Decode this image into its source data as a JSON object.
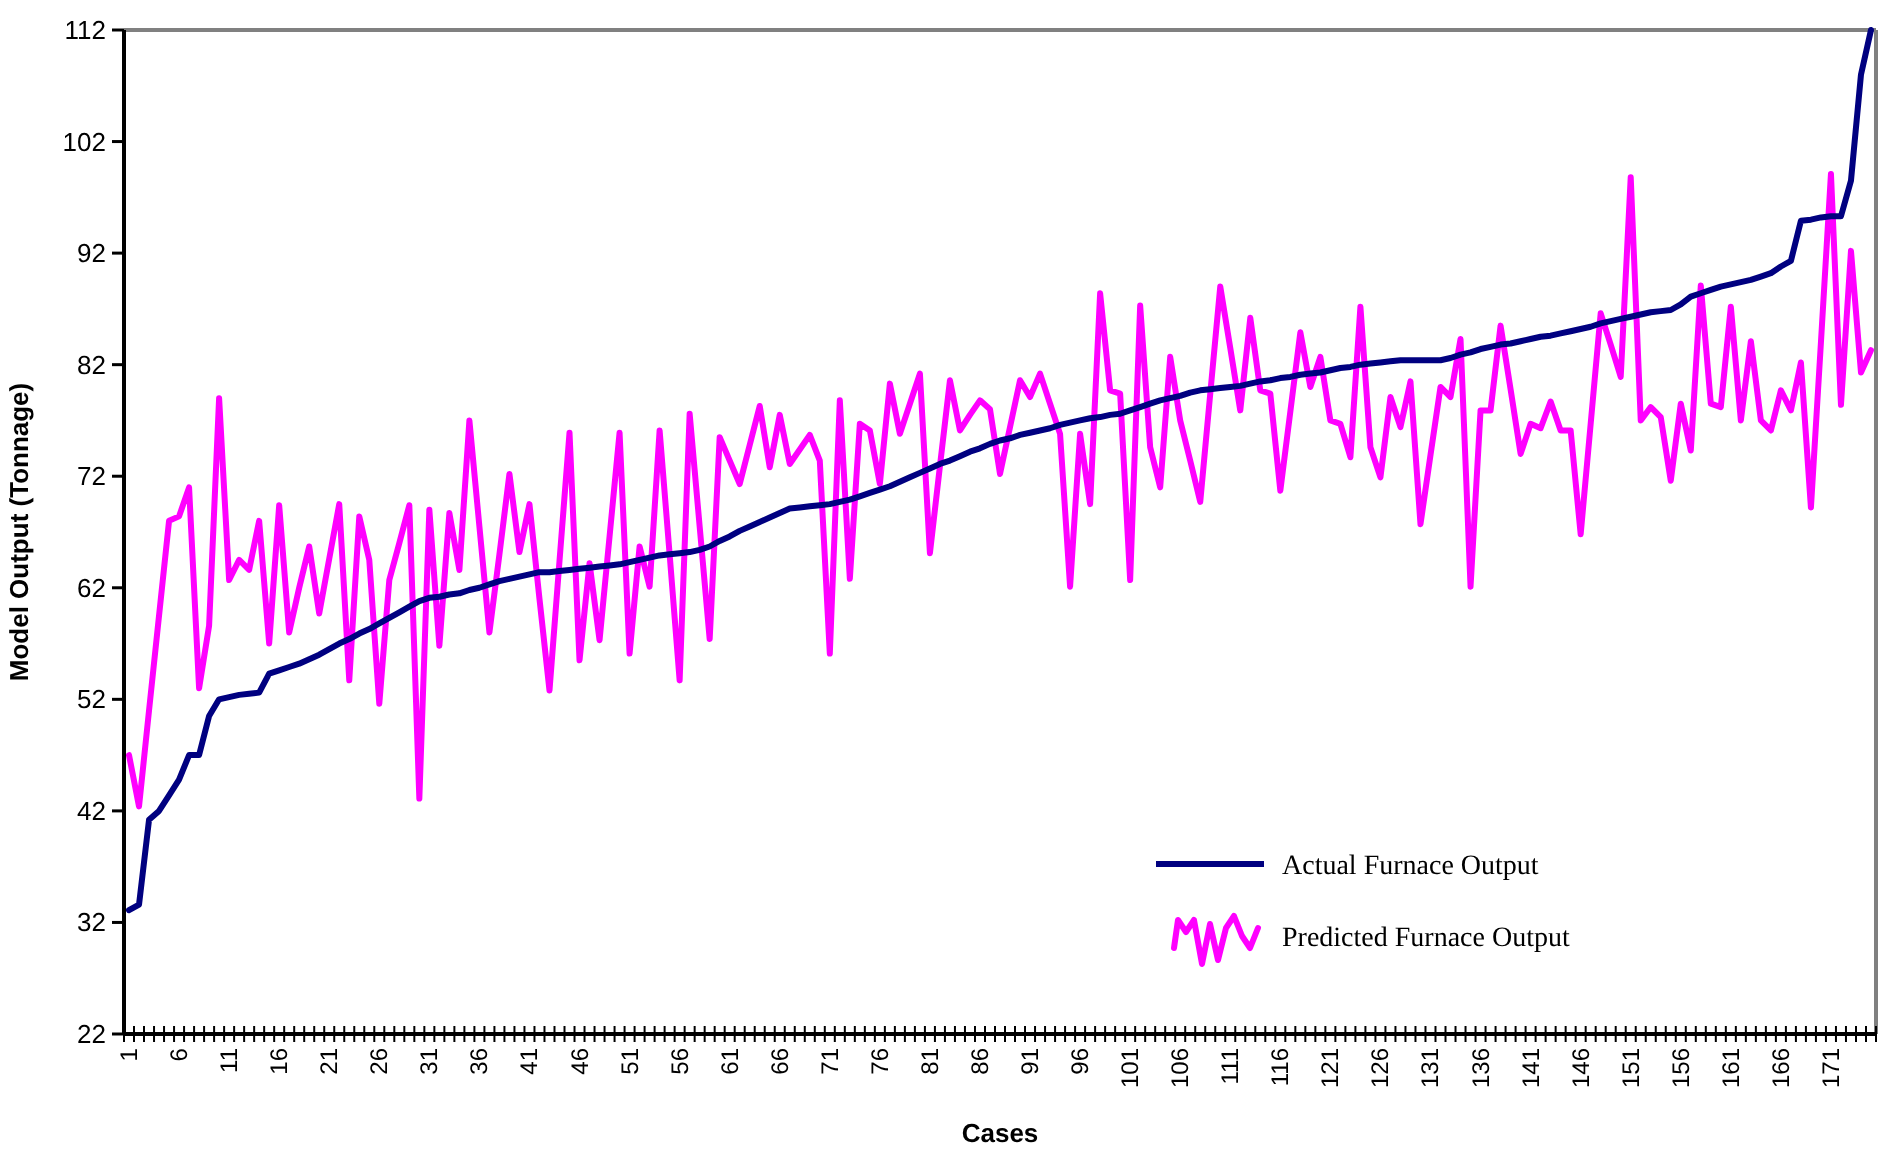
{
  "chart_data": {
    "type": "line",
    "xlabel": "Cases",
    "ylabel": "Model Output (Tonnage)",
    "categories": [
      "1",
      null,
      null,
      null,
      null,
      "6",
      null,
      null,
      null,
      null,
      "11",
      null,
      null,
      null,
      null,
      "16",
      null,
      null,
      null,
      null,
      "21",
      null,
      null,
      null,
      null,
      "26",
      null,
      null,
      null,
      null,
      "31",
      null,
      null,
      null,
      null,
      "36",
      null,
      null,
      null,
      null,
      "41",
      null,
      null,
      null,
      null,
      "46",
      null,
      null,
      null,
      null,
      "51",
      null,
      null,
      null,
      null,
      "56",
      null,
      null,
      null,
      null,
      "61",
      null,
      null,
      null,
      null,
      "66",
      null,
      null,
      null,
      null,
      "71",
      null,
      null,
      null,
      null,
      "76",
      null,
      null,
      null,
      null,
      "81",
      null,
      null,
      null,
      null,
      "86",
      null,
      null,
      null,
      null,
      "91",
      null,
      null,
      null,
      null,
      "96",
      null,
      null,
      null,
      null,
      "101",
      null,
      null,
      null,
      null,
      "106",
      null,
      null,
      null,
      null,
      "111",
      null,
      null,
      null,
      null,
      "116",
      null,
      null,
      null,
      null,
      "121",
      null,
      null,
      null,
      null,
      "126",
      null,
      null,
      null,
      null,
      "131",
      null,
      null,
      null,
      null,
      "136",
      null,
      null,
      null,
      null,
      "141",
      null,
      null,
      null,
      null,
      "146",
      null,
      null,
      null,
      null,
      "151",
      null,
      null,
      null,
      null,
      "156",
      null,
      null,
      null,
      null,
      "161",
      null,
      null,
      null,
      null,
      "166",
      null,
      null,
      null,
      null,
      "171",
      null,
      null,
      null,
      null
    ],
    "series": [
      {
        "name": "Actual Furnace Output",
        "color": "#000080",
        "values": [
          33.1,
          33.6,
          41.2,
          42,
          43.4,
          44.8,
          47,
          47,
          50.5,
          52,
          52.2,
          52.4,
          52.5,
          52.6,
          54.3,
          54.6,
          54.9,
          55.2,
          55.6,
          56,
          56.5,
          57,
          57.4,
          57.9,
          58.3,
          58.8,
          59.3,
          59.8,
          60.3,
          60.8,
          61.1,
          61.2,
          61.4,
          61.5,
          61.8,
          62,
          62.3,
          62.6,
          62.8,
          63,
          63.2,
          63.4,
          63.4,
          63.5,
          63.6,
          63.7,
          63.8,
          63.9,
          64,
          64.1,
          64.3,
          64.5,
          64.7,
          64.9,
          65,
          65.1,
          65.2,
          65.4,
          65.7,
          66.2,
          66.6,
          67.1,
          67.5,
          67.9,
          68.3,
          68.7,
          69.1,
          69.2,
          69.3,
          69.4,
          69.5,
          69.7,
          69.9,
          70.2,
          70.5,
          70.8,
          71.1,
          71.5,
          71.9,
          72.3,
          72.7,
          73.1,
          73.4,
          73.8,
          74.2,
          74.5,
          74.9,
          75.2,
          75.4,
          75.7,
          75.9,
          76.1,
          76.3,
          76.6,
          76.8,
          77,
          77.2,
          77.3,
          77.5,
          77.6,
          77.9,
          78.2,
          78.5,
          78.8,
          79,
          79.2,
          79.5,
          79.7,
          79.8,
          79.9,
          80,
          80.1,
          80.3,
          80.5,
          80.6,
          80.8,
          80.9,
          81.1,
          81.2,
          81.3,
          81.5,
          81.7,
          81.8,
          82,
          82.1,
          82.2,
          82.3,
          82.4,
          82.4,
          82.4,
          82.4,
          82.4,
          82.6,
          82.9,
          83.1,
          83.4,
          83.6,
          83.8,
          83.9,
          84.1,
          84.3,
          84.5,
          84.6,
          84.8,
          85,
          85.2,
          85.4,
          85.7,
          85.9,
          86.1,
          86.3,
          86.5,
          86.7,
          86.8,
          86.9,
          87.4,
          88.1,
          88.4,
          88.7,
          89,
          89.2,
          89.4,
          89.6,
          89.9,
          90.2,
          90.8,
          91.3,
          94.9,
          95,
          95.2,
          95.3,
          95.3,
          98.5,
          108,
          112
        ]
      },
      {
        "name": "Predicted Furnace Output",
        "color": "#ff00ff",
        "values": [
          47,
          42.4,
          51,
          59.5,
          68,
          68.4,
          71,
          53,
          58.6,
          79,
          62.7,
          64.5,
          63.6,
          68,
          57,
          69.4,
          58,
          62,
          65.7,
          59.7,
          64.6,
          69.5,
          53.7,
          68.4,
          64.5,
          51.6,
          62.7,
          66,
          69.4,
          43.1,
          69,
          56.8,
          68.7,
          63.6,
          77,
          67.5,
          58,
          65,
          72.2,
          65.2,
          69.5,
          61,
          52.8,
          64.4,
          75.9,
          55.5,
          64.2,
          57.3,
          66.6,
          75.9,
          56.1,
          65.7,
          62.1,
          76.1,
          65,
          53.7,
          77.6,
          67.5,
          57.4,
          75.5,
          73.4,
          71.3,
          74.8,
          78.3,
          72.8,
          77.5,
          73.1,
          74.4,
          75.7,
          73.4,
          56.1,
          78.8,
          62.8,
          76.7,
          76.1,
          71.3,
          80.3,
          75.8,
          78.5,
          81.2,
          65.1,
          72.9,
          80.6,
          76.1,
          77.5,
          78.8,
          78,
          72.2,
          76.4,
          80.6,
          79.1,
          81.2,
          78.5,
          75.8,
          62.1,
          75.8,
          69.5,
          88.4,
          79.7,
          79.4,
          62.7,
          87.3,
          74.6,
          71,
          82.7,
          77,
          73.4,
          69.7,
          79.4,
          89,
          83.5,
          77.9,
          86.2,
          79.7,
          79.4,
          70.7,
          77.8,
          84.9,
          80,
          82.7,
          77,
          76.7,
          73.7,
          87.2,
          74.6,
          71.9,
          79.1,
          76.4,
          80.5,
          67.7,
          73.9,
          80,
          79.1,
          84.3,
          62.1,
          77.9,
          77.9,
          85.5,
          79.8,
          74,
          76.7,
          76.3,
          78.7,
          76.1,
          76.1,
          66.8,
          76.7,
          86.6,
          83.8,
          80.9,
          98.8,
          77,
          78.2,
          77.3,
          71.6,
          78.5,
          74.3,
          89.1,
          78.5,
          78.2,
          87.2,
          77,
          84.1,
          77,
          76.1,
          79.7,
          77.9,
          82.2,
          69.2,
          84,
          99.1,
          78.4,
          92.2,
          81.3,
          83.3
        ]
      }
    ],
    "ylim": [
      22,
      112
    ],
    "yticks": [
      22,
      32,
      42,
      52,
      62,
      72,
      82,
      92,
      102,
      112
    ],
    "legend": "bottom right",
    "line_style": "solid"
  }
}
